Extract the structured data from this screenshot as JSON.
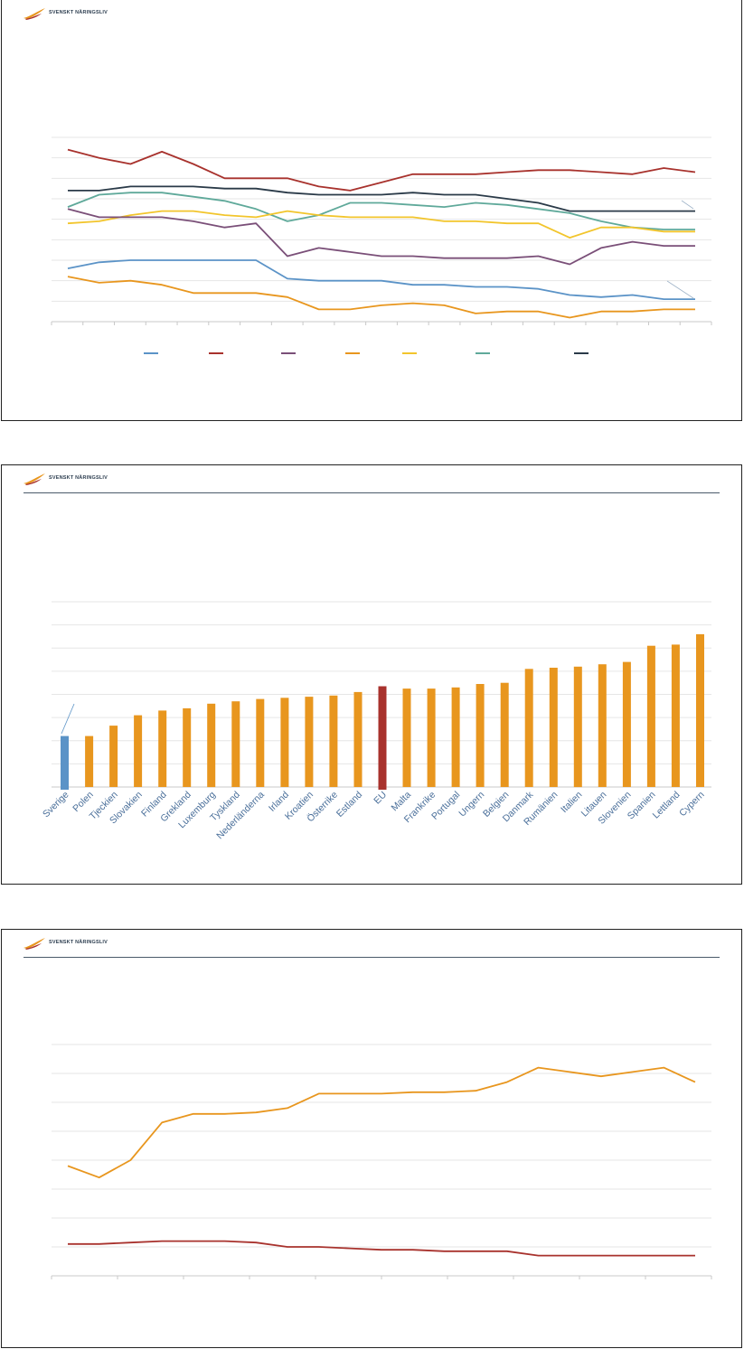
{
  "brand": {
    "logo_text": "SVENSKT NÄRINGSLIV"
  },
  "colors": {
    "orange": "#E8961E",
    "dark_red": "#A8322D",
    "steel_blue": "#5B93C7",
    "purple": "#7A4F78",
    "yellow": "#F2C52C",
    "teal": "#5FA99A",
    "navy": "#2A3A48",
    "grid": "#e6e6e6",
    "axis": "#c8c8c8"
  },
  "chart_data": [
    {
      "type": "line",
      "title": "",
      "ylim": [
        0,
        9
      ],
      "grid": true,
      "legend": "bottom",
      "series": [
        {
          "color": "#A8322D",
          "values": [
            8.4,
            8.0,
            7.7,
            8.3,
            7.7,
            7.0,
            7.0,
            7.0,
            6.6,
            6.4,
            6.8,
            7.2,
            7.2,
            7.2,
            7.3,
            7.4,
            7.4,
            7.3,
            7.2,
            7.5,
            7.3
          ]
        },
        {
          "color": "#2A3A48",
          "values": [
            6.4,
            6.4,
            6.6,
            6.6,
            6.6,
            6.5,
            6.5,
            6.3,
            6.2,
            6.2,
            6.2,
            6.3,
            6.2,
            6.2,
            6.0,
            5.8,
            5.4,
            5.4,
            5.4,
            5.4,
            5.4
          ]
        },
        {
          "color": "#5FA99A",
          "values": [
            5.6,
            6.2,
            6.3,
            6.3,
            6.1,
            5.9,
            5.5,
            4.9,
            5.2,
            5.8,
            5.8,
            5.7,
            5.6,
            5.8,
            5.7,
            5.5,
            5.3,
            4.9,
            4.6,
            4.5,
            4.5
          ]
        },
        {
          "color": "#F2C52C",
          "values": [
            4.8,
            4.9,
            5.2,
            5.4,
            5.4,
            5.2,
            5.1,
            5.4,
            5.2,
            5.1,
            5.1,
            5.1,
            4.9,
            4.9,
            4.8,
            4.8,
            4.1,
            4.6,
            4.6,
            4.4,
            4.4
          ]
        },
        {
          "color": "#7A4F78",
          "values": [
            5.5,
            5.1,
            5.1,
            5.1,
            4.9,
            4.6,
            4.8,
            3.2,
            3.6,
            3.4,
            3.2,
            3.2,
            3.1,
            3.1,
            3.1,
            3.2,
            2.8,
            3.6,
            3.9,
            3.7,
            3.7
          ]
        },
        {
          "color": "#5B93C7",
          "values": [
            2.6,
            2.9,
            3.0,
            3.0,
            3.0,
            3.0,
            3.0,
            2.1,
            2.0,
            2.0,
            2.0,
            1.8,
            1.8,
            1.7,
            1.7,
            1.6,
            1.3,
            1.2,
            1.3,
            1.1,
            1.1
          ]
        },
        {
          "color": "#E8961E",
          "values": [
            2.2,
            1.9,
            2.0,
            1.8,
            1.4,
            1.4,
            1.4,
            1.2,
            0.6,
            0.6,
            0.8,
            0.9,
            0.8,
            0.4,
            0.5,
            0.5,
            0.2,
            0.5,
            0.5,
            0.6,
            0.6
          ]
        }
      ]
    },
    {
      "type": "bar",
      "title": "",
      "ylim": [
        0,
        8
      ],
      "grid": true,
      "categories": [
        "Sverige",
        "Polen",
        "Tjeckien",
        "Slovakien",
        "Finland",
        "Grekland",
        "Luxemburg",
        "Tyskland",
        "Nederländerna",
        "Irland",
        "Kroatien",
        "Österrike",
        "Estland",
        "EU",
        "Malta",
        "Frankrike",
        "Portugal",
        "Ungern",
        "Belgien",
        "Danmark",
        "Rumänien",
        "Italien",
        "Litauen",
        "Slovenien",
        "Spanien",
        "Lettland",
        "Cypern"
      ],
      "values": [
        2.2,
        2.2,
        2.65,
        3.1,
        3.3,
        3.4,
        3.6,
        3.7,
        3.8,
        3.85,
        3.9,
        3.95,
        4.1,
        4.35,
        4.25,
        4.25,
        4.3,
        4.45,
        4.5,
        5.1,
        5.15,
        5.2,
        5.3,
        5.4,
        6.1,
        6.15,
        6.6
      ],
      "highlight": {
        "Sverige": "#5B93C7",
        "EU": "#A8322D"
      },
      "default_color": "#E8961E"
    },
    {
      "type": "line",
      "title": "",
      "ylim": [
        0,
        8
      ],
      "grid": true,
      "series": [
        {
          "color": "#E8961E",
          "values": [
            3.8,
            3.4,
            4.0,
            5.3,
            5.6,
            5.6,
            5.65,
            5.8,
            6.3,
            6.3,
            6.3,
            6.35,
            6.35,
            6.4,
            6.7,
            7.2,
            7.05,
            6.9,
            7.05,
            7.2,
            6.7
          ]
        },
        {
          "color": "#A8322D",
          "values": [
            1.1,
            1.1,
            1.15,
            1.2,
            1.2,
            1.2,
            1.15,
            1.0,
            1.0,
            0.95,
            0.9,
            0.9,
            0.85,
            0.85,
            0.85,
            0.7,
            0.7,
            0.7,
            0.7,
            0.7,
            0.7
          ]
        }
      ]
    }
  ]
}
